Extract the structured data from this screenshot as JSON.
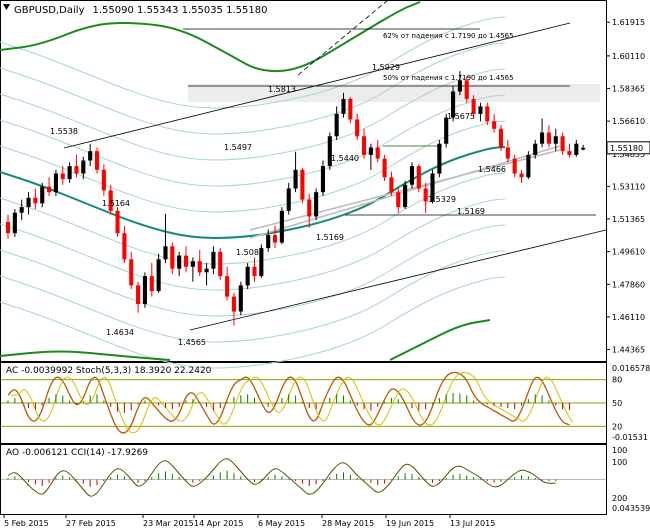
{
  "header": {
    "symbol_tf": "GBPUSD,Daily",
    "ohlc": "1.55090 1.55343 1.55035 1.55180"
  },
  "price_axis": {
    "ticks": [
      "1.61915",
      "1.60110",
      "1.58365",
      "1.56610",
      "1.54855",
      "1.53110",
      "1.51365",
      "1.49610",
      "1.47860",
      "1.46110",
      "1.44365"
    ],
    "current_price": "1.55180",
    "current_price_color": "#000000"
  },
  "time_axis": {
    "labels": [
      "5 Feb 2015",
      "27 Feb 2015",
      "23 Mar 2015",
      "14 Apr 2015",
      "6 May 2015",
      "28 May 2015",
      "19 Jun 2015",
      "13 Jul 2015"
    ]
  },
  "annotations": {
    "fib62": "62% от падения с 1.7190 до 1.4565",
    "fib50": "50% от падения с 1.7190 до 1.4565",
    "levels": [
      "1.5538",
      "1.5164",
      "1.4634",
      "1.4565",
      "1.5497",
      "1.5089",
      "1.5813",
      "1.5440",
      "1.5169",
      "1.5929",
      "1.5675",
      "1.5329",
      "1.5466",
      "1.5169"
    ]
  },
  "stoch_panel": {
    "label": "AC -0.0039992  Stoch(5,3,3) 18.3920 22.2420",
    "ticks": [
      "0.016578",
      "80",
      "50",
      "20",
      "-0.01531"
    ]
  },
  "cci_panel": {
    "label": "AO -0.006121  CCI(14) -17.9269",
    "ticks": [
      "100",
      "100",
      "200",
      "0.043539"
    ]
  },
  "colors": {
    "bull": "#000000",
    "bear": "#ff0000",
    "ma_teal": "#138a78",
    "envelope_green": "#1a8a1a",
    "band_light": "#a9d6cf",
    "stoch_main": "#b85a00",
    "stoch_signal": "#d4c000",
    "level_line": "#8aa000"
  },
  "chart_data": {
    "type": "candlestick",
    "series": [
      {
        "name": "GBPUSD,Daily",
        "values": [
          [
            1.512,
            1.516,
            1.503,
            1.506
          ],
          [
            1.506,
            1.519,
            1.504,
            1.517
          ],
          [
            1.517,
            1.524,
            1.513,
            1.52
          ],
          [
            1.52,
            1.528,
            1.516,
            1.525
          ],
          [
            1.525,
            1.53,
            1.519,
            1.522
          ],
          [
            1.522,
            1.533,
            1.52,
            1.531
          ],
          [
            1.531,
            1.536,
            1.526,
            1.528
          ],
          [
            1.528,
            1.54,
            1.526,
            1.538
          ],
          [
            1.538,
            1.542,
            1.532,
            1.535
          ],
          [
            1.535,
            1.544,
            1.533,
            1.542
          ],
          [
            1.542,
            1.548,
            1.536,
            1.538
          ],
          [
            1.538,
            1.547,
            1.535,
            1.545
          ],
          [
            1.545,
            1.5538,
            1.542,
            1.55
          ],
          [
            1.55,
            1.552,
            1.538,
            1.54
          ],
          [
            1.54,
            1.543,
            1.526,
            1.529
          ],
          [
            1.529,
            1.532,
            1.516,
            1.518
          ],
          [
            1.518,
            1.52,
            1.504,
            1.506
          ],
          [
            1.506,
            1.51,
            1.49,
            1.492
          ],
          [
            1.492,
            1.496,
            1.476,
            1.478
          ],
          [
            1.478,
            1.48,
            1.4634,
            1.468
          ],
          [
            1.468,
            1.485,
            1.466,
            1.483
          ],
          [
            1.483,
            1.49,
            1.472,
            1.475
          ],
          [
            1.475,
            1.495,
            1.474,
            1.492
          ],
          [
            1.492,
            1.5164,
            1.49,
            1.499
          ],
          [
            1.499,
            1.501,
            1.484,
            1.487
          ],
          [
            1.487,
            1.496,
            1.483,
            1.494
          ],
          [
            1.494,
            1.499,
            1.485,
            1.488
          ],
          [
            1.488,
            1.493,
            1.48,
            1.491
          ],
          [
            1.491,
            1.497,
            1.483,
            1.485
          ],
          [
            1.485,
            1.49,
            1.478,
            1.487
          ],
          [
            1.487,
            1.499,
            1.484,
            1.496
          ],
          [
            1.496,
            1.498,
            1.481,
            1.483
          ],
          [
            1.483,
            1.488,
            1.47,
            1.472
          ],
          [
            1.472,
            1.474,
            1.4565,
            1.464
          ],
          [
            1.464,
            1.48,
            1.462,
            1.478
          ],
          [
            1.478,
            1.49,
            1.476,
            1.488
          ],
          [
            1.488,
            1.493,
            1.48,
            1.483
          ],
          [
            1.483,
            1.5,
            1.482,
            1.498
          ],
          [
            1.498,
            1.508,
            1.496,
            1.505
          ],
          [
            1.505,
            1.51,
            1.498,
            1.501
          ],
          [
            1.501,
            1.52,
            1.5,
            1.518
          ],
          [
            1.518,
            1.533,
            1.516,
            1.53
          ],
          [
            1.53,
            1.5497,
            1.528,
            1.54
          ],
          [
            1.54,
            1.541,
            1.522,
            1.524
          ],
          [
            1.524,
            1.527,
            1.5089,
            1.515
          ],
          [
            1.515,
            1.53,
            1.513,
            1.528
          ],
          [
            1.528,
            1.545,
            1.526,
            1.542
          ],
          [
            1.542,
            1.56,
            1.54,
            1.558
          ],
          [
            1.558,
            1.574,
            1.556,
            1.57
          ],
          [
            1.57,
            1.5813,
            1.568,
            1.578
          ],
          [
            1.578,
            1.579,
            1.565,
            1.567
          ],
          [
            1.567,
            1.57,
            1.556,
            1.558
          ],
          [
            1.558,
            1.562,
            1.546,
            1.548
          ],
          [
            1.548,
            1.554,
            1.54,
            1.552
          ],
          [
            1.552,
            1.556,
            1.544,
            1.546
          ],
          [
            1.546,
            1.548,
            1.534,
            1.536
          ],
          [
            1.536,
            1.539,
            1.526,
            1.528
          ],
          [
            1.528,
            1.53,
            1.5169,
            1.52
          ],
          [
            1.52,
            1.534,
            1.519,
            1.532
          ],
          [
            1.532,
            1.544,
            1.53,
            1.542
          ],
          [
            1.542,
            1.543,
            1.528,
            1.53
          ],
          [
            1.53,
            1.533,
            1.5169,
            1.523
          ],
          [
            1.523,
            1.54,
            1.522,
            1.538
          ],
          [
            1.538,
            1.556,
            1.536,
            1.554
          ],
          [
            1.554,
            1.57,
            1.552,
            1.568
          ],
          [
            1.568,
            1.585,
            1.566,
            1.582
          ],
          [
            1.582,
            1.5929,
            1.58,
            1.588
          ],
          [
            1.588,
            1.59,
            1.576,
            1.578
          ],
          [
            1.578,
            1.58,
            1.568,
            1.57
          ],
          [
            1.57,
            1.576,
            1.566,
            1.574
          ],
          [
            1.574,
            1.576,
            1.564,
            1.566
          ],
          [
            1.566,
            1.57,
            1.56,
            1.562
          ],
          [
            1.562,
            1.564,
            1.55,
            1.552
          ],
          [
            1.552,
            1.556,
            1.544,
            1.546
          ],
          [
            1.546,
            1.548,
            1.536,
            1.538
          ],
          [
            1.538,
            1.54,
            1.5329,
            1.536
          ],
          [
            1.536,
            1.55,
            1.535,
            1.548
          ],
          [
            1.548,
            1.556,
            1.546,
            1.554
          ],
          [
            1.554,
            1.5675,
            1.552,
            1.56
          ],
          [
            1.56,
            1.564,
            1.552,
            1.554
          ],
          [
            1.554,
            1.562,
            1.55,
            1.558
          ],
          [
            1.558,
            1.56,
            1.548,
            1.55
          ],
          [
            1.55,
            1.554,
            1.5466,
            1.548
          ],
          [
            1.548,
            1.556,
            1.547,
            1.554
          ],
          [
            1.5509,
            1.5534,
            1.5504,
            1.5518
          ]
        ]
      }
    ],
    "ylim": [
      1.438,
      1.63
    ]
  }
}
